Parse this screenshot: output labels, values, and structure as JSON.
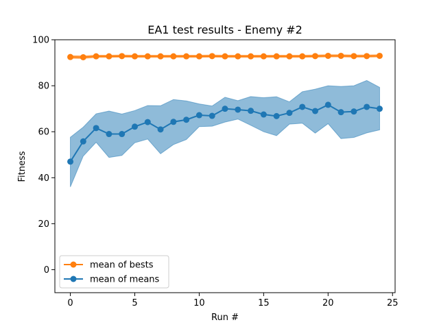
{
  "chart_data": {
    "type": "line",
    "title": "EA1 test results - Enemy #2",
    "xlabel": "Run #",
    "ylabel": "Fitness",
    "xlim": [
      -1.2,
      25.2
    ],
    "ylim": [
      -10,
      100
    ],
    "xticks": [
      0,
      5,
      10,
      15,
      20,
      25
    ],
    "yticks": [
      0,
      20,
      40,
      60,
      80,
      100
    ],
    "grid": false,
    "legend_position": "lower-left",
    "x": [
      0,
      1,
      2,
      3,
      4,
      5,
      6,
      7,
      8,
      9,
      10,
      11,
      12,
      13,
      14,
      15,
      16,
      17,
      18,
      19,
      20,
      21,
      22,
      23,
      24
    ],
    "series": [
      {
        "name": "mean of bests",
        "color": "#ff7f0e",
        "values": [
          92.5,
          92.4,
          92.8,
          92.8,
          92.9,
          92.8,
          92.8,
          92.8,
          92.8,
          92.8,
          92.8,
          92.9,
          92.8,
          92.8,
          92.8,
          92.8,
          92.8,
          92.8,
          92.8,
          92.9,
          93.0,
          93.0,
          92.9,
          92.9,
          93.0
        ],
        "band_low": [
          91.9,
          91.8,
          92.3,
          92.3,
          92.4,
          92.3,
          92.3,
          92.3,
          92.3,
          92.3,
          92.3,
          92.4,
          92.3,
          92.3,
          92.3,
          92.3,
          92.3,
          92.3,
          92.3,
          92.4,
          92.5,
          92.5,
          92.4,
          92.4,
          92.5
        ],
        "band_high": [
          93.1,
          93.0,
          93.3,
          93.3,
          93.4,
          93.3,
          93.3,
          93.3,
          93.3,
          93.3,
          93.3,
          93.4,
          93.3,
          93.3,
          93.3,
          93.3,
          93.3,
          93.3,
          93.3,
          93.4,
          93.5,
          93.5,
          93.4,
          93.4,
          93.5
        ]
      },
      {
        "name": "mean of means",
        "color": "#1f77b4",
        "values": [
          47.0,
          55.8,
          61.6,
          59.0,
          59.0,
          62.2,
          64.2,
          61.0,
          64.3,
          65.2,
          67.2,
          66.9,
          70.0,
          69.6,
          69.1,
          67.5,
          66.8,
          68.2,
          70.8,
          69.0,
          71.7,
          68.5,
          68.8,
          70.8,
          70.0
        ],
        "band_low": [
          36.0,
          49.4,
          55.4,
          48.8,
          49.7,
          55.2,
          56.8,
          50.4,
          54.4,
          56.6,
          62.2,
          62.4,
          64.2,
          65.5,
          62.8,
          60.0,
          58.3,
          63.3,
          63.7,
          59.4,
          63.5,
          57.0,
          57.5,
          59.5,
          60.8
        ],
        "band_high": [
          57.6,
          62.0,
          67.8,
          69.0,
          67.7,
          69.2,
          71.4,
          71.3,
          74.0,
          73.4,
          72.1,
          71.2,
          75.0,
          73.5,
          75.3,
          74.8,
          75.2,
          73.0,
          77.4,
          78.5,
          80.0,
          79.7,
          80.0,
          82.3,
          79.3
        ]
      }
    ]
  }
}
